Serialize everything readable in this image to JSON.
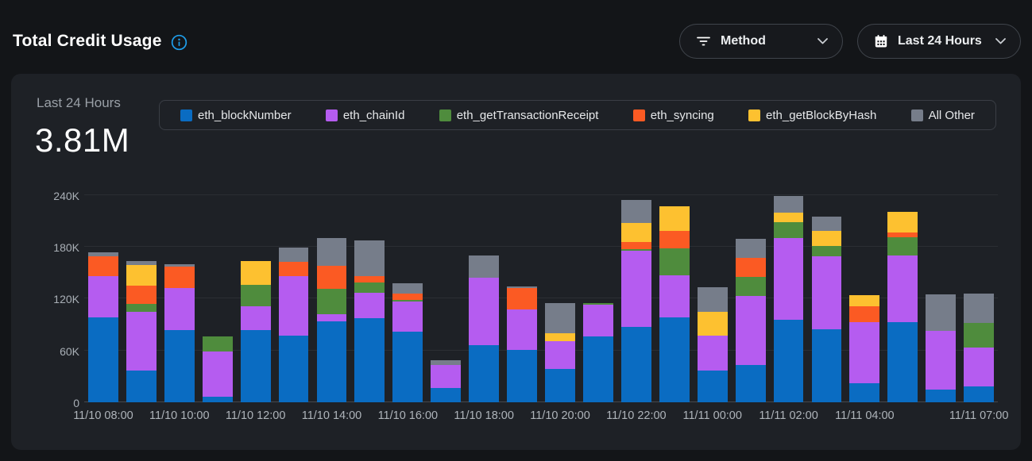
{
  "header": {
    "title": "Total Credit Usage",
    "controls": {
      "method_dropdown": {
        "label": "Method",
        "icon": "filter-icon"
      },
      "time_range_dropdown": {
        "label": "Last 24 Hours",
        "icon": "calendar-icon"
      }
    }
  },
  "stat": {
    "period_label": "Last 24 Hours",
    "total_value": "3.81M"
  },
  "colors": {
    "page_background": "#131518",
    "card_background": "#1e2126",
    "info_accent": "#1f9de9",
    "grid_line": "#2b2e33",
    "axis_text": "#aeb4ba"
  },
  "chart_data": {
    "type": "bar",
    "stacked": true,
    "title": "Total Credit Usage - Last 24 Hours",
    "unit": "thousands of credits",
    "ymax": 250,
    "grid": true,
    "legend_position": "top",
    "n_bars": 24,
    "y_ticks": [
      {
        "value": 0,
        "label": "0"
      },
      {
        "value": 60,
        "label": "60K"
      },
      {
        "value": 120,
        "label": "120K"
      },
      {
        "value": 180,
        "label": "180K"
      },
      {
        "value": 240,
        "label": "240K"
      }
    ],
    "x_tick_labels": [
      {
        "index": 0,
        "label": "11/10 08:00"
      },
      {
        "index": 2,
        "label": "11/10 10:00"
      },
      {
        "index": 4,
        "label": "11/10 12:00"
      },
      {
        "index": 6,
        "label": "11/10 14:00"
      },
      {
        "index": 8,
        "label": "11/10 16:00"
      },
      {
        "index": 10,
        "label": "11/10 18:00"
      },
      {
        "index": 12,
        "label": "11/10 20:00"
      },
      {
        "index": 14,
        "label": "11/10 22:00"
      },
      {
        "index": 16,
        "label": "11/11 00:00"
      },
      {
        "index": 18,
        "label": "11/11 02:00"
      },
      {
        "index": 20,
        "label": "11/11 04:00"
      },
      {
        "index": 23,
        "label": "11/11 07:00"
      }
    ],
    "series": [
      {
        "name": "eth_blockNumber",
        "color": "#0a6cc2",
        "values": [
          98,
          37,
          84,
          6,
          84,
          77,
          94,
          97,
          82,
          17,
          66,
          61,
          39,
          76,
          87,
          98,
          37,
          43,
          96,
          85,
          22,
          93,
          15,
          18
        ]
      },
      {
        "name": "eth_chainId",
        "color": "#b55cf0",
        "values": [
          48,
          68,
          48,
          53,
          27,
          69,
          8,
          30,
          35,
          26,
          78,
          47,
          32,
          37,
          89,
          49,
          40,
          80,
          94,
          84,
          71,
          77,
          68,
          45
        ]
      },
      {
        "name": "eth_getTransactionReceipt",
        "color": "#4f8c3d",
        "values": [
          0,
          9,
          0,
          17,
          25,
          0,
          29,
          12,
          2,
          0,
          0,
          0,
          0,
          2,
          1,
          31,
          0,
          22,
          19,
          12,
          0,
          21,
          0,
          29
        ]
      },
      {
        "name": "eth_syncing",
        "color": "#fb5a23",
        "values": [
          23,
          21,
          25,
          0,
          0,
          17,
          27,
          7,
          7,
          0,
          0,
          24,
          0,
          0,
          9,
          21,
          0,
          22,
          0,
          0,
          18,
          6,
          0,
          0
        ]
      },
      {
        "name": "eth_getBlockByHash",
        "color": "#fdc130",
        "values": [
          0,
          24,
          0,
          0,
          28,
          0,
          0,
          0,
          0,
          0,
          0,
          0,
          9,
          0,
          22,
          28,
          28,
          0,
          11,
          18,
          13,
          24,
          0,
          0
        ]
      },
      {
        "name": "All Other",
        "color": "#767d8a",
        "values": [
          5,
          5,
          3,
          0,
          0,
          16,
          32,
          42,
          12,
          6,
          26,
          2,
          35,
          0,
          26,
          0,
          28,
          22,
          19,
          16,
          0,
          0,
          42,
          34
        ]
      }
    ]
  }
}
